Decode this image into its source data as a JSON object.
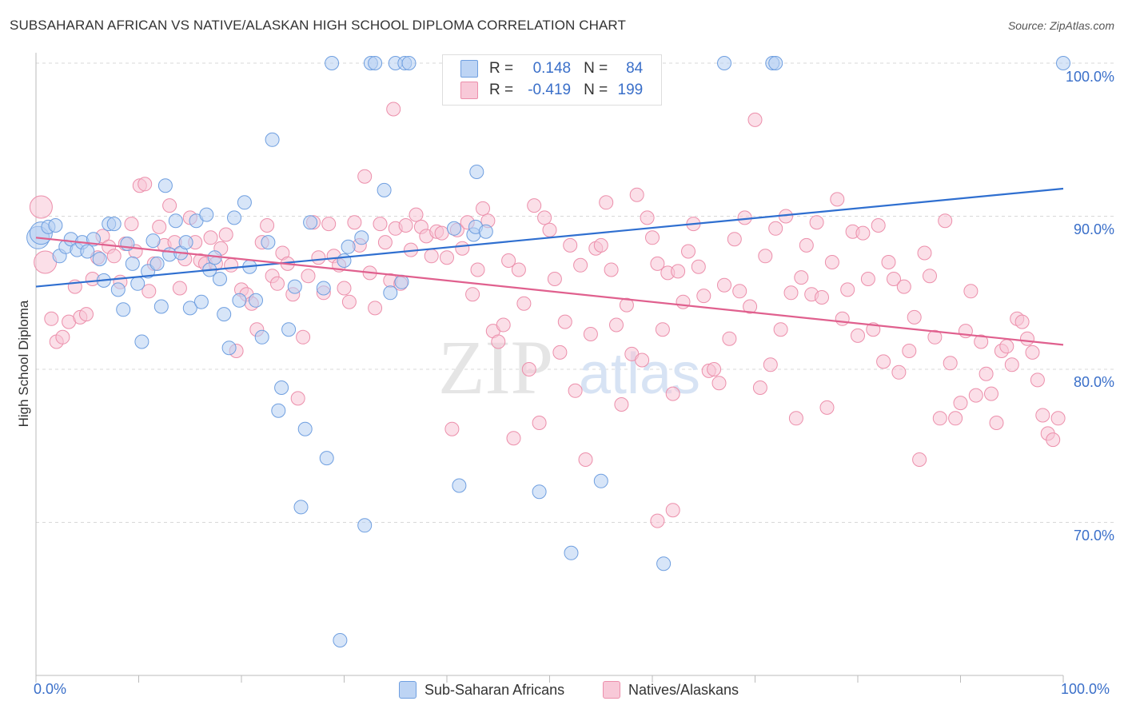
{
  "title": "SUBSAHARAN AFRICAN VS NATIVE/ALASKAN HIGH SCHOOL DIPLOMA CORRELATION CHART",
  "source": "Source: ZipAtlas.com",
  "watermark": {
    "zip": "ZIP",
    "atlas": "atlas"
  },
  "legend": {
    "r_label": "R =",
    "n_label": "N =",
    "rows": [
      {
        "r": "0.148",
        "n": "84",
        "color": "#aac8f0"
      },
      {
        "r": "-0.419",
        "n": "199",
        "color": "#f6b8cc"
      }
    ]
  },
  "chart_data": {
    "type": "scatter",
    "title": "SUBSAHARAN AFRICAN VS NATIVE/ALASKAN HIGH SCHOOL DIPLOMA CORRELATION CHART",
    "xlabel": "",
    "ylabel": "High School Diploma",
    "xlim": [
      0,
      100
    ],
    "ylim": [
      60,
      102
    ],
    "x_ticks": [
      "0.0%",
      "100.0%"
    ],
    "y_ticks": [
      {
        "value": 70,
        "label": "70.0%"
      },
      {
        "value": 80,
        "label": "80.0%"
      },
      {
        "value": 90,
        "label": "90.0%"
      },
      {
        "value": 100,
        "label": "100.0%"
      }
    ],
    "grid": true,
    "series": [
      {
        "name": "Sub-Saharan Africans",
        "r": 0.148,
        "n": 84,
        "color": "#6f9fe0",
        "fill": "#b7d0f2",
        "line_color": "#2f6fd0",
        "trend": [
          [
            0,
            85.4
          ],
          [
            100,
            91.8
          ]
        ],
        "points": [
          [
            0.2,
            88.6
          ],
          [
            0.5,
            88.9
          ],
          [
            1.2,
            89.3
          ],
          [
            1.9,
            89.4
          ],
          [
            2.3,
            87.4
          ],
          [
            2.9,
            88.0
          ],
          [
            3.4,
            88.5
          ],
          [
            4.0,
            87.8
          ],
          [
            4.5,
            88.3
          ],
          [
            5.0,
            87.7
          ],
          [
            5.6,
            88.5
          ],
          [
            6.2,
            87.2
          ],
          [
            6.6,
            85.8
          ],
          [
            7.1,
            89.5
          ],
          [
            7.6,
            89.5
          ],
          [
            8.0,
            85.2
          ],
          [
            8.5,
            83.9
          ],
          [
            8.9,
            88.2
          ],
          [
            9.4,
            86.9
          ],
          [
            9.9,
            85.6
          ],
          [
            10.3,
            81.8
          ],
          [
            10.9,
            86.4
          ],
          [
            11.4,
            88.4
          ],
          [
            11.8,
            86.9
          ],
          [
            12.2,
            84.1
          ],
          [
            12.6,
            92.0
          ],
          [
            13.0,
            87.5
          ],
          [
            13.6,
            89.7
          ],
          [
            14.1,
            87.6
          ],
          [
            14.6,
            88.3
          ],
          [
            15.0,
            84.0
          ],
          [
            15.6,
            89.7
          ],
          [
            16.1,
            84.4
          ],
          [
            16.6,
            90.1
          ],
          [
            16.9,
            86.5
          ],
          [
            17.4,
            87.3
          ],
          [
            17.9,
            85.9
          ],
          [
            18.3,
            83.6
          ],
          [
            18.8,
            81.4
          ],
          [
            19.3,
            89.9
          ],
          [
            19.8,
            84.5
          ],
          [
            20.3,
            90.9
          ],
          [
            20.8,
            86.7
          ],
          [
            21.4,
            84.5
          ],
          [
            22.0,
            82.1
          ],
          [
            22.6,
            88.3
          ],
          [
            23.0,
            95.0
          ],
          [
            23.6,
            77.3
          ],
          [
            23.9,
            78.8
          ],
          [
            24.6,
            82.6
          ],
          [
            25.2,
            85.4
          ],
          [
            25.8,
            71.0
          ],
          [
            26.2,
            76.1
          ],
          [
            26.7,
            89.6
          ],
          [
            28.0,
            85.3
          ],
          [
            28.3,
            74.2
          ],
          [
            28.8,
            100.0
          ],
          [
            29.6,
            62.3
          ],
          [
            30.0,
            87.1
          ],
          [
            30.4,
            88.0
          ],
          [
            31.7,
            88.6
          ],
          [
            32.0,
            69.8
          ],
          [
            32.6,
            100.0
          ],
          [
            33.0,
            100.0
          ],
          [
            33.9,
            91.7
          ],
          [
            34.5,
            85.0
          ],
          [
            35.0,
            100.0
          ],
          [
            35.6,
            85.7
          ],
          [
            35.9,
            100.0
          ],
          [
            36.3,
            100.0
          ],
          [
            40.7,
            89.2
          ],
          [
            41.2,
            72.4
          ],
          [
            42.6,
            88.8
          ],
          [
            42.8,
            89.3
          ],
          [
            42.9,
            92.9
          ],
          [
            43.8,
            89.0
          ],
          [
            49.0,
            72.0
          ],
          [
            49.1,
            100.0
          ],
          [
            49.9,
            99.5
          ],
          [
            52.1,
            68.0
          ],
          [
            52.9,
            100.0
          ],
          [
            55.0,
            72.7
          ],
          [
            61.1,
            67.3
          ],
          [
            67.0,
            100.0
          ],
          [
            71.7,
            100.0
          ],
          [
            72.0,
            100.0
          ],
          [
            100.0,
            100.0
          ]
        ]
      },
      {
        "name": "Natives/Alaskans",
        "r": -0.419,
        "n": 199,
        "color": "#ec8fab",
        "fill": "#f7c5d5",
        "line_color": "#e0608e",
        "trend": [
          [
            0,
            88.6
          ],
          [
            100,
            81.6
          ]
        ],
        "points": [
          [
            0.5,
            90.6
          ],
          [
            0.9,
            87.0
          ],
          [
            1.5,
            83.3
          ],
          [
            2.0,
            81.8
          ],
          [
            2.6,
            82.1
          ],
          [
            3.2,
            83.1
          ],
          [
            3.8,
            85.4
          ],
          [
            4.3,
            83.4
          ],
          [
            4.9,
            83.6
          ],
          [
            5.5,
            85.9
          ],
          [
            6.0,
            87.3
          ],
          [
            6.5,
            88.7
          ],
          [
            7.1,
            88.0
          ],
          [
            7.6,
            87.4
          ],
          [
            8.2,
            85.7
          ],
          [
            8.7,
            88.2
          ],
          [
            9.3,
            89.5
          ],
          [
            9.7,
            87.7
          ],
          [
            10.1,
            92.0
          ],
          [
            10.6,
            92.1
          ],
          [
            11.0,
            85.1
          ],
          [
            11.5,
            86.9
          ],
          [
            12.0,
            89.3
          ],
          [
            12.5,
            88.1
          ],
          [
            13.0,
            90.7
          ],
          [
            13.5,
            88.3
          ],
          [
            14.0,
            85.3
          ],
          [
            14.5,
            87.2
          ],
          [
            15.0,
            89.9
          ],
          [
            15.5,
            88.3
          ],
          [
            16.0,
            87.1
          ],
          [
            16.5,
            86.9
          ],
          [
            17.0,
            88.6
          ],
          [
            17.5,
            86.9
          ],
          [
            18.0,
            87.9
          ],
          [
            18.5,
            88.8
          ],
          [
            19.0,
            86.8
          ],
          [
            19.5,
            81.2
          ],
          [
            20.0,
            85.2
          ],
          [
            20.5,
            84.9
          ],
          [
            21.0,
            84.3
          ],
          [
            21.5,
            82.6
          ],
          [
            22.0,
            88.3
          ],
          [
            22.5,
            89.4
          ],
          [
            23.0,
            86.1
          ],
          [
            23.5,
            85.6
          ],
          [
            24.0,
            87.6
          ],
          [
            24.5,
            86.9
          ],
          [
            25.0,
            84.9
          ],
          [
            25.5,
            78.1
          ],
          [
            26.0,
            82.1
          ],
          [
            26.5,
            86.1
          ],
          [
            27.0,
            89.6
          ],
          [
            27.5,
            87.3
          ],
          [
            28.0,
            85.0
          ],
          [
            28.5,
            89.5
          ],
          [
            29.0,
            87.4
          ],
          [
            29.5,
            86.8
          ],
          [
            30.0,
            85.3
          ],
          [
            30.5,
            84.4
          ],
          [
            31.0,
            89.6
          ],
          [
            31.5,
            88.1
          ],
          [
            32.0,
            92.6
          ],
          [
            32.5,
            86.3
          ],
          [
            33.0,
            84.0
          ],
          [
            33.5,
            89.5
          ],
          [
            34.0,
            88.3
          ],
          [
            34.5,
            85.8
          ],
          [
            35.0,
            89.2
          ],
          [
            35.5,
            85.6
          ],
          [
            36.0,
            89.4
          ],
          [
            36.5,
            87.8
          ],
          [
            37.0,
            90.1
          ],
          [
            37.5,
            89.3
          ],
          [
            38.0,
            88.7
          ],
          [
            38.5,
            87.4
          ],
          [
            39.0,
            89.0
          ],
          [
            39.5,
            88.9
          ],
          [
            40.0,
            87.3
          ],
          [
            40.5,
            76.1
          ],
          [
            41.0,
            89.1
          ],
          [
            41.5,
            87.9
          ],
          [
            42.0,
            89.6
          ],
          [
            42.5,
            84.9
          ],
          [
            43.0,
            86.5
          ],
          [
            43.5,
            90.5
          ],
          [
            44.0,
            89.7
          ],
          [
            44.5,
            82.5
          ],
          [
            45.0,
            81.8
          ],
          [
            45.5,
            82.9
          ],
          [
            46.0,
            87.1
          ],
          [
            46.5,
            75.5
          ],
          [
            47.0,
            86.5
          ],
          [
            47.5,
            84.3
          ],
          [
            48.0,
            80.0
          ],
          [
            48.5,
            90.7
          ],
          [
            49.0,
            76.5
          ],
          [
            49.5,
            89.9
          ],
          [
            50.0,
            89.1
          ],
          [
            50.5,
            85.9
          ],
          [
            51.0,
            81.1
          ],
          [
            51.5,
            83.1
          ],
          [
            52.0,
            88.1
          ],
          [
            52.5,
            78.6
          ],
          [
            53.0,
            86.8
          ],
          [
            53.5,
            74.1
          ],
          [
            54.0,
            82.3
          ],
          [
            54.5,
            87.9
          ],
          [
            55.0,
            88.1
          ],
          [
            55.5,
            90.9
          ],
          [
            56.0,
            86.5
          ],
          [
            56.5,
            82.9
          ],
          [
            57.0,
            77.7
          ],
          [
            57.5,
            84.2
          ],
          [
            58.0,
            81.0
          ],
          [
            58.5,
            91.4
          ],
          [
            59.0,
            80.6
          ],
          [
            59.5,
            89.9
          ],
          [
            60.0,
            88.6
          ],
          [
            60.5,
            86.9
          ],
          [
            61.0,
            82.6
          ],
          [
            61.5,
            86.3
          ],
          [
            62.0,
            78.4
          ],
          [
            62.5,
            86.4
          ],
          [
            63.0,
            84.4
          ],
          [
            63.5,
            87.7
          ],
          [
            64.0,
            89.5
          ],
          [
            64.5,
            86.7
          ],
          [
            65.0,
            84.8
          ],
          [
            65.5,
            79.9
          ],
          [
            66.0,
            80.0
          ],
          [
            66.5,
            79.1
          ],
          [
            67.0,
            85.5
          ],
          [
            67.5,
            82.0
          ],
          [
            68.0,
            88.5
          ],
          [
            68.5,
            85.1
          ],
          [
            69.0,
            89.9
          ],
          [
            69.5,
            84.1
          ],
          [
            70.0,
            96.3
          ],
          [
            70.5,
            78.8
          ],
          [
            71.0,
            87.4
          ],
          [
            71.5,
            80.3
          ],
          [
            72.0,
            89.2
          ],
          [
            72.5,
            82.6
          ],
          [
            73.0,
            90.0
          ],
          [
            73.5,
            85.0
          ],
          [
            74.0,
            76.8
          ],
          [
            74.5,
            86.0
          ],
          [
            75.0,
            88.1
          ],
          [
            75.5,
            84.9
          ],
          [
            76.0,
            89.6
          ],
          [
            76.5,
            84.7
          ],
          [
            77.0,
            77.5
          ],
          [
            77.5,
            87.0
          ],
          [
            78.0,
            91.1
          ],
          [
            78.5,
            83.3
          ],
          [
            79.0,
            85.2
          ],
          [
            79.5,
            89.0
          ],
          [
            80.0,
            82.2
          ],
          [
            80.5,
            88.9
          ],
          [
            81.0,
            85.9
          ],
          [
            81.5,
            82.6
          ],
          [
            82.0,
            89.4
          ],
          [
            82.5,
            80.5
          ],
          [
            83.0,
            87.0
          ],
          [
            83.5,
            85.9
          ],
          [
            84.0,
            79.8
          ],
          [
            84.5,
            85.4
          ],
          [
            85.0,
            81.2
          ],
          [
            85.5,
            83.4
          ],
          [
            86.0,
            74.1
          ],
          [
            86.5,
            87.6
          ],
          [
            87.0,
            86.1
          ],
          [
            87.5,
            82.1
          ],
          [
            88.0,
            76.8
          ],
          [
            88.5,
            89.7
          ],
          [
            89.0,
            80.4
          ],
          [
            89.5,
            76.8
          ],
          [
            90.0,
            77.8
          ],
          [
            90.5,
            82.5
          ],
          [
            91.0,
            85.1
          ],
          [
            91.5,
            78.3
          ],
          [
            92.0,
            81.8
          ],
          [
            92.5,
            79.7
          ],
          [
            93.0,
            78.4
          ],
          [
            93.5,
            76.5
          ],
          [
            94.0,
            81.2
          ],
          [
            94.5,
            81.5
          ],
          [
            95.0,
            80.3
          ],
          [
            95.5,
            83.3
          ],
          [
            96.0,
            83.1
          ],
          [
            96.5,
            82.0
          ],
          [
            97.0,
            81.1
          ],
          [
            97.5,
            79.3
          ],
          [
            98.0,
            77.0
          ],
          [
            98.5,
            75.8
          ],
          [
            99.0,
            75.4
          ],
          [
            99.5,
            76.8
          ],
          [
            58.0,
            97.7
          ],
          [
            60.5,
            70.1
          ],
          [
            62.0,
            70.8
          ],
          [
            34.8,
            97.0
          ]
        ]
      }
    ]
  },
  "axes": {
    "ylabel": "High School Diploma",
    "x_left": "0.0%",
    "x_right": "100.0%"
  },
  "bottom_legend": [
    "Sub-Saharan Africans",
    "Natives/Alaskans"
  ]
}
